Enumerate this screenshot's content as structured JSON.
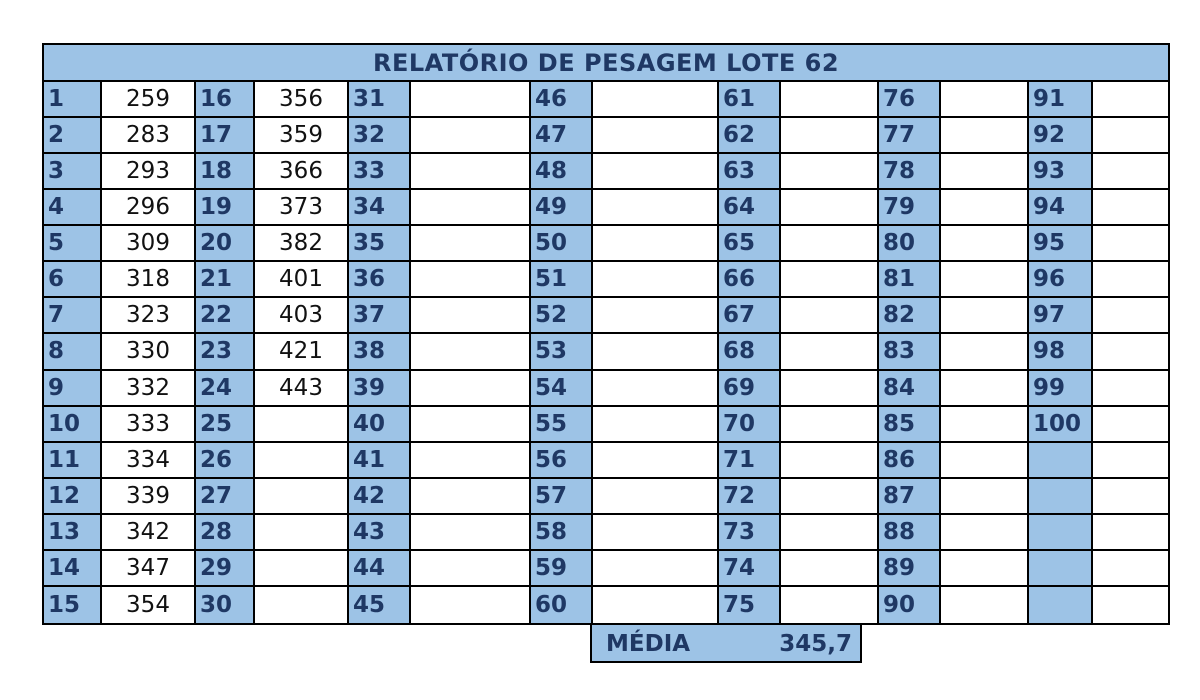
{
  "title": "RELATÓRIO DE PESAGEM LOTE 62",
  "columns": [
    {
      "numbers": [
        "1",
        "2",
        "3",
        "4",
        "5",
        "6",
        "7",
        "8",
        "9",
        "10",
        "11",
        "12",
        "13",
        "14",
        "15"
      ],
      "weights": [
        "259",
        "283",
        "293",
        "296",
        "309",
        "318",
        "323",
        "330",
        "332",
        "333",
        "334",
        "339",
        "342",
        "347",
        "354"
      ]
    },
    {
      "numbers": [
        "16",
        "17",
        "18",
        "19",
        "20",
        "21",
        "22",
        "23",
        "24",
        "25",
        "26",
        "27",
        "28",
        "29",
        "30"
      ],
      "weights": [
        "356",
        "359",
        "366",
        "373",
        "382",
        "401",
        "403",
        "421",
        "443",
        "",
        "",
        "",
        "",
        "",
        ""
      ]
    },
    {
      "numbers": [
        "31",
        "32",
        "33",
        "34",
        "35",
        "36",
        "37",
        "38",
        "39",
        "40",
        "41",
        "42",
        "43",
        "44",
        "45"
      ],
      "weights": [
        "",
        "",
        "",
        "",
        "",
        "",
        "",
        "",
        "",
        "",
        "",
        "",
        "",
        "",
        ""
      ]
    },
    {
      "numbers": [
        "46",
        "47",
        "48",
        "49",
        "50",
        "51",
        "52",
        "53",
        "54",
        "55",
        "56",
        "57",
        "58",
        "59",
        "60"
      ],
      "weights": [
        "",
        "",
        "",
        "",
        "",
        "",
        "",
        "",
        "",
        "",
        "",
        "",
        "",
        "",
        ""
      ]
    },
    {
      "numbers": [
        "61",
        "62",
        "63",
        "64",
        "65",
        "66",
        "67",
        "68",
        "69",
        "70",
        "71",
        "72",
        "73",
        "74",
        "75"
      ],
      "weights": [
        "",
        "",
        "",
        "",
        "",
        "",
        "",
        "",
        "",
        "",
        "",
        "",
        "",
        "",
        ""
      ]
    },
    {
      "numbers": [
        "76",
        "77",
        "78",
        "79",
        "80",
        "81",
        "82",
        "83",
        "84",
        "85",
        "86",
        "87",
        "88",
        "89",
        "90"
      ],
      "weights": [
        "",
        "",
        "",
        "",
        "",
        "",
        "",
        "",
        "",
        "",
        "",
        "",
        "",
        "",
        ""
      ]
    },
    {
      "numbers": [
        "91",
        "92",
        "93",
        "94",
        "95",
        "96",
        "97",
        "98",
        "99",
        "100",
        "",
        "",
        "",
        "",
        ""
      ],
      "weights": [
        "",
        "",
        "",
        "",
        "",
        "",
        "",
        "",
        "",
        "",
        "",
        "",
        "",
        "",
        ""
      ]
    }
  ],
  "summary": {
    "label": "MÉDIA",
    "value": "345,7"
  },
  "colors": {
    "header_fill": "#9dc3e6",
    "header_text": "#1f3864",
    "border": "#000000"
  }
}
